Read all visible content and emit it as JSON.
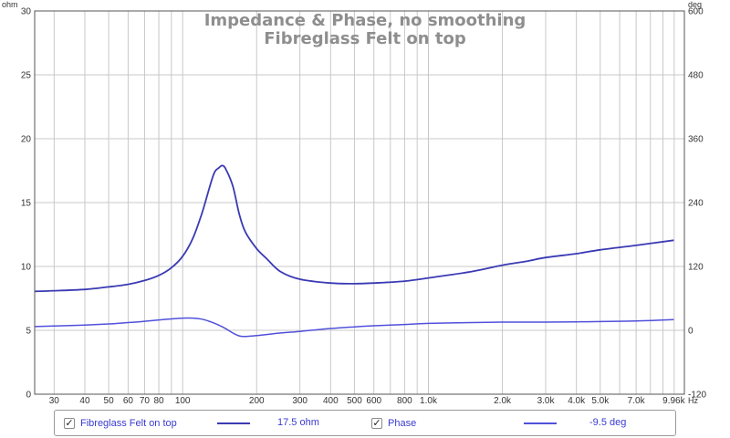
{
  "chart_data": {
    "type": "line",
    "title": "Impedance & Phase, no smoothing",
    "subtitle": "Fibreglass Felt on top",
    "x_scale": "log",
    "x_unit": "Hz",
    "xlim": [
      25,
      11000
    ],
    "x_tick_labels": [
      "30",
      "40",
      "50",
      "60",
      "70",
      "80",
      "100",
      "200",
      "300",
      "400",
      "500",
      "600",
      "800",
      "1.0k",
      "2.0k",
      "3.0k",
      "4.0k",
      "5.0k",
      "7.0k",
      "9.96k"
    ],
    "y_left": {
      "unit": "ohm",
      "lim": [
        0,
        30
      ],
      "ticks": [
        "0",
        "5",
        "10",
        "15",
        "20",
        "25",
        "30"
      ]
    },
    "y_right": {
      "unit": "deg",
      "lim": [
        -120,
        600
      ],
      "ticks": [
        "-120",
        "0",
        "120",
        "240",
        "360",
        "480",
        "600"
      ]
    },
    "grid": true,
    "series": [
      {
        "name": "Fibreglass Felt on top",
        "axis": "left",
        "color": "#3a3ab4",
        "points": [
          [
            25,
            8.05
          ],
          [
            30,
            8.1
          ],
          [
            40,
            8.2
          ],
          [
            50,
            8.4
          ],
          [
            60,
            8.6
          ],
          [
            70,
            8.9
          ],
          [
            80,
            9.3
          ],
          [
            90,
            9.9
          ],
          [
            100,
            10.8
          ],
          [
            110,
            12.2
          ],
          [
            120,
            14.2
          ],
          [
            130,
            16.5
          ],
          [
            135,
            17.4
          ],
          [
            140,
            17.7
          ],
          [
            145,
            17.9
          ],
          [
            150,
            17.6
          ],
          [
            160,
            16.3
          ],
          [
            170,
            14.1
          ],
          [
            180,
            12.7
          ],
          [
            200,
            11.4
          ],
          [
            220,
            10.6
          ],
          [
            250,
            9.6
          ],
          [
            300,
            9.0
          ],
          [
            400,
            8.7
          ],
          [
            500,
            8.65
          ],
          [
            600,
            8.7
          ],
          [
            800,
            8.85
          ],
          [
            1000,
            9.1
          ],
          [
            1500,
            9.6
          ],
          [
            2000,
            10.1
          ],
          [
            2500,
            10.4
          ],
          [
            3000,
            10.7
          ],
          [
            4000,
            11.0
          ],
          [
            5000,
            11.3
          ],
          [
            7000,
            11.65
          ],
          [
            9960,
            12.05
          ]
        ]
      },
      {
        "name": "Phase",
        "axis": "right",
        "color": "#5050dc",
        "points": [
          [
            25,
            7
          ],
          [
            30,
            8
          ],
          [
            40,
            10
          ],
          [
            50,
            12
          ],
          [
            60,
            14.5
          ],
          [
            70,
            17
          ],
          [
            80,
            19.5
          ],
          [
            90,
            21.5
          ],
          [
            100,
            23
          ],
          [
            110,
            23
          ],
          [
            120,
            21
          ],
          [
            130,
            16
          ],
          [
            140,
            10
          ],
          [
            150,
            3
          ],
          [
            160,
            -5
          ],
          [
            170,
            -10.5
          ],
          [
            180,
            -11.5
          ],
          [
            200,
            -10
          ],
          [
            250,
            -5
          ],
          [
            300,
            -2
          ],
          [
            400,
            3.5
          ],
          [
            500,
            6.5
          ],
          [
            600,
            8.5
          ],
          [
            800,
            11
          ],
          [
            1000,
            13
          ],
          [
            1500,
            14.5
          ],
          [
            2000,
            15.5
          ],
          [
            3000,
            15.5
          ],
          [
            4000,
            16
          ],
          [
            5000,
            16.5
          ],
          [
            7000,
            17.5
          ],
          [
            9960,
            20
          ]
        ]
      }
    ],
    "legend_values": [
      "17.5 ohm",
      "-9.5 deg"
    ]
  }
}
